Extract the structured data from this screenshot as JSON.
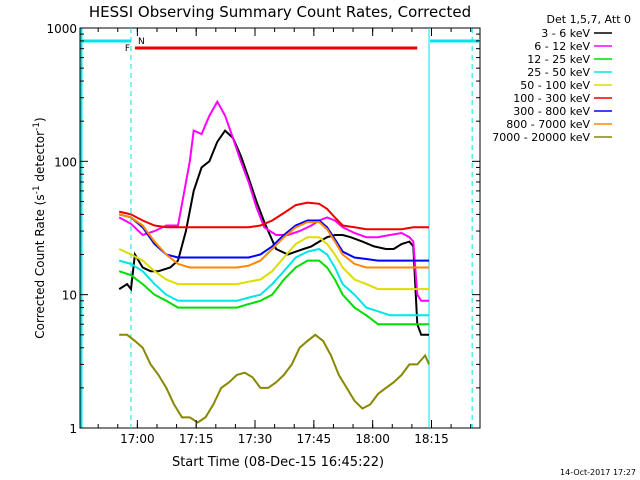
{
  "chart_data": {
    "type": "line",
    "title": "HESSI Observing Summary Count Rates, Corrected",
    "xlabel": "Start Time (08-Dec-15 16:45:22)",
    "ylabel_main": "Corrected Count Rate (s",
    "ylabel_sup1": "-1",
    "ylabel_mid": " detector",
    "ylabel_sup2": "-1",
    "ylabel_end": ")",
    "yscale": "log",
    "ylim": [
      1,
      1000
    ],
    "xlim_minutes": [
      0,
      102
    ],
    "x_ticks": [
      "17:00",
      "17:15",
      "17:30",
      "17:45",
      "18:00",
      "18:15"
    ],
    "x_tick_minutes": [
      14.63,
      29.63,
      44.63,
      59.63,
      74.63,
      89.63
    ],
    "y_ticks": [
      "1",
      "10",
      "100",
      "1000"
    ],
    "y_tick_values": [
      1,
      10,
      100,
      1000
    ],
    "timestamp": "14-Oct-2017 17:27",
    "legend": {
      "header": "Det 1,5,7, Att 0",
      "items": [
        {
          "label": "3 - 6 keV",
          "color": "#000000"
        },
        {
          "label": "6 - 12 keV",
          "color": "#ff00ff"
        },
        {
          "label": "12 - 25 keV",
          "color": "#00dd00"
        },
        {
          "label": "25 - 50 keV",
          "color": "#00e5e5"
        },
        {
          "label": "50 - 100 keV",
          "color": "#dddd00"
        },
        {
          "label": "100 - 300 keV",
          "color": "#ee0000"
        },
        {
          "label": "300 - 800 keV",
          "color": "#0000ff"
        },
        {
          "label": "800 - 7000 keV",
          "color": "#ff8800"
        },
        {
          "label": "7000 - 20000 keV",
          "color": "#888800"
        }
      ]
    },
    "flags": {
      "night_label": "N",
      "flare_label": "F",
      "night_intervals_minutes": [
        [
          0,
          13
        ],
        [
          89,
          102
        ]
      ],
      "flare_interval_minutes": [
        14,
        86
      ],
      "night_color": "#00e5e5",
      "flare_color": "#ee0000",
      "night_boundaries_minutes": [
        13,
        89,
        100
      ]
    },
    "series": [
      {
        "name": "3 - 6 keV",
        "color": "#000000",
        "x": [
          10,
          12,
          13,
          14,
          16,
          18,
          20,
          23,
          25,
          27,
          29,
          31,
          33,
          35,
          37,
          39,
          41,
          43,
          45,
          47,
          50,
          53,
          55,
          57,
          59,
          61,
          63,
          65,
          67,
          69,
          72,
          75,
          78,
          80,
          82,
          84,
          85,
          86,
          87,
          88,
          89
        ],
        "y": [
          11,
          12,
          11,
          20,
          16,
          15,
          15,
          16,
          18,
          30,
          60,
          90,
          100,
          140,
          170,
          150,
          110,
          75,
          50,
          35,
          22,
          20,
          21,
          22,
          23,
          25,
          27,
          28,
          28,
          27,
          25,
          23,
          22,
          22,
          24,
          25,
          23,
          6,
          5,
          5,
          5
        ]
      },
      {
        "name": "6 - 12 keV",
        "color": "#ff00ff",
        "x": [
          10,
          13,
          16,
          19,
          22,
          25,
          28,
          29,
          31,
          33,
          35,
          37,
          39,
          41,
          43,
          45,
          47,
          50,
          53,
          56,
          59,
          61,
          63,
          65,
          67,
          70,
          73,
          76,
          79,
          82,
          84,
          85,
          86,
          87,
          88,
          89
        ],
        "y": [
          38,
          34,
          28,
          30,
          33,
          33,
          100,
          170,
          160,
          220,
          280,
          220,
          150,
          100,
          70,
          45,
          32,
          28,
          28,
          30,
          33,
          36,
          38,
          36,
          32,
          29,
          27,
          27,
          28,
          29,
          27,
          25,
          10,
          9,
          9,
          9
        ]
      },
      {
        "name": "12 - 25 keV",
        "color": "#00dd00",
        "x": [
          10,
          13,
          16,
          19,
          22,
          25,
          28,
          31,
          34,
          37,
          40,
          43,
          46,
          49,
          52,
          55,
          58,
          61,
          63,
          65,
          67,
          70,
          73,
          76,
          79,
          82,
          85,
          88,
          89
        ],
        "y": [
          15,
          14,
          12,
          10,
          9,
          8,
          8,
          8,
          8,
          8,
          8,
          8.5,
          9,
          10,
          13,
          16,
          18,
          18,
          16,
          13,
          10,
          8,
          7,
          6,
          6,
          6,
          6,
          6,
          6
        ]
      },
      {
        "name": "25 - 50 keV",
        "color": "#00e5e5",
        "x": [
          10,
          13,
          16,
          19,
          22,
          25,
          28,
          31,
          34,
          37,
          40,
          43,
          46,
          49,
          52,
          55,
          58,
          61,
          63,
          65,
          67,
          70,
          73,
          76,
          79,
          82,
          85,
          88,
          89
        ],
        "y": [
          18,
          17,
          15,
          12,
          10,
          9,
          9,
          9,
          9,
          9,
          9,
          9.5,
          10,
          12,
          15,
          19,
          21,
          22,
          20,
          16,
          12,
          10,
          8,
          7.5,
          7,
          7,
          7,
          7,
          7
        ]
      },
      {
        "name": "50 - 100 keV",
        "color": "#dddd00",
        "x": [
          10,
          13,
          16,
          19,
          22,
          25,
          28,
          31,
          34,
          37,
          40,
          43,
          46,
          49,
          52,
          55,
          58,
          61,
          63,
          65,
          67,
          70,
          73,
          76,
          79,
          82,
          85,
          88,
          89
        ],
        "y": [
          22,
          20,
          18,
          15,
          13,
          12,
          12,
          12,
          12,
          12,
          12,
          12.5,
          13,
          15,
          19,
          24,
          27,
          27,
          24,
          20,
          16,
          13,
          12,
          11,
          11,
          11,
          11,
          11,
          11
        ]
      },
      {
        "name": "100 - 300 keV",
        "color": "#ee0000",
        "x": [
          10,
          13,
          16,
          19,
          22,
          25,
          28,
          31,
          34,
          37,
          40,
          43,
          46,
          49,
          52,
          55,
          58,
          61,
          63,
          65,
          67,
          70,
          73,
          76,
          79,
          82,
          85,
          88,
          89
        ],
        "y": [
          42,
          40,
          36,
          33,
          32,
          32,
          32,
          32,
          32,
          32,
          32,
          32,
          33,
          36,
          41,
          47,
          49,
          48,
          44,
          38,
          33,
          32,
          31,
          31,
          31,
          31,
          32,
          32,
          32
        ]
      },
      {
        "name": "300 - 800 keV",
        "color": "#0000ff",
        "x": [
          10,
          13,
          16,
          19,
          22,
          25,
          28,
          31,
          34,
          37,
          40,
          43,
          46,
          49,
          52,
          55,
          58,
          61,
          63,
          65,
          67,
          70,
          73,
          76,
          79,
          82,
          85,
          88,
          89
        ],
        "y": [
          40,
          38,
          32,
          24,
          20,
          19,
          19,
          19,
          19,
          19,
          19,
          19,
          20,
          23,
          28,
          33,
          36,
          36,
          32,
          26,
          21,
          19,
          18.5,
          18,
          18,
          18,
          18,
          18,
          18
        ]
      },
      {
        "name": "800 - 7000 keV",
        "color": "#ff8800",
        "x": [
          10,
          13,
          16,
          19,
          22,
          25,
          28,
          31,
          34,
          37,
          40,
          43,
          46,
          49,
          52,
          55,
          58,
          61,
          63,
          65,
          67,
          70,
          73,
          76,
          79,
          82,
          85,
          88,
          89
        ],
        "y": [
          40,
          38,
          33,
          25,
          20,
          17,
          16,
          16,
          16,
          16,
          16,
          16.5,
          18,
          22,
          27,
          32,
          35,
          35,
          31,
          25,
          20,
          17,
          16,
          16,
          16,
          16,
          16,
          16,
          16
        ]
      },
      {
        "name": "7000 - 20000 keV",
        "color": "#888800",
        "x": [
          10,
          12,
          14,
          16,
          18,
          20,
          22,
          24,
          26,
          28,
          30,
          32,
          34,
          36,
          38,
          40,
          42,
          44,
          46,
          48,
          50,
          52,
          54,
          56,
          58,
          60,
          62,
          64,
          66,
          68,
          70,
          72,
          74,
          76,
          78,
          80,
          82,
          84,
          86,
          88,
          89
        ],
        "y": [
          5,
          5,
          4.5,
          4,
          3,
          2.5,
          2,
          1.5,
          1.2,
          1.2,
          1.1,
          1.2,
          1.5,
          2,
          2.2,
          2.5,
          2.6,
          2.4,
          2,
          2,
          2.2,
          2.5,
          3,
          4,
          4.5,
          5,
          4.5,
          3.5,
          2.5,
          2,
          1.6,
          1.4,
          1.5,
          1.8,
          2,
          2.2,
          2.5,
          3,
          3,
          3.5,
          3
        ]
      }
    ]
  }
}
